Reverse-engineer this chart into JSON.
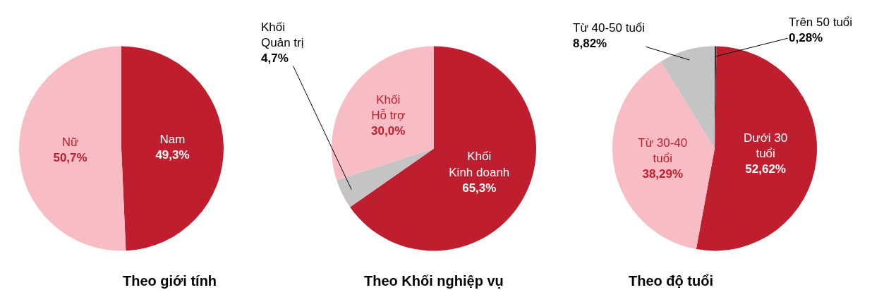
{
  "chart_data": [
    {
      "type": "pie",
      "title": "Theo giới tính",
      "categories": [
        "Nam",
        "Nữ"
      ],
      "values": [
        49.3,
        50.7
      ],
      "colors": [
        "#be1e2d",
        "#f7bcc4"
      ],
      "value_labels": [
        "49,3%",
        "50,7%"
      ]
    },
    {
      "type": "pie",
      "title": "Theo Khối nghiệp vụ",
      "categories": [
        "Khối\nKinh doanh",
        "Khối\nQuản trị",
        "Khối\nHỗ trợ"
      ],
      "values": [
        65.3,
        4.7,
        30.0
      ],
      "colors": [
        "#be1e2d",
        "#c4c4c4",
        "#f7bcc4"
      ],
      "value_labels": [
        "65,3%",
        "4,7%",
        "30,0%"
      ]
    },
    {
      "type": "pie",
      "title": "Theo độ tuổi",
      "categories": [
        "Trên 50 tuổi",
        "Dưới 30\ntuổi",
        "Từ 30-40\ntuổi",
        "Từ 40-50 tuổi"
      ],
      "values": [
        0.28,
        52.62,
        38.29,
        8.82
      ],
      "colors": [
        "#333333",
        "#be1e2d",
        "#f7bcc4",
        "#c4c4c4"
      ],
      "value_labels": [
        "0,28%",
        "52,62%",
        "38,29%",
        "8,82%"
      ]
    }
  ]
}
